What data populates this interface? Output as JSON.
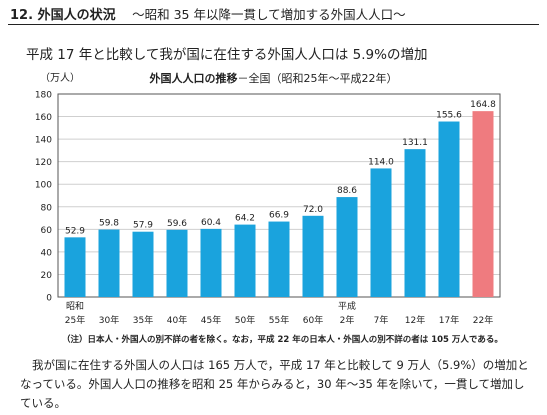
{
  "section": {
    "number": "12.",
    "title": "外国人の状況",
    "subtitle": "～昭和 35 年以降一貫して増加する外国人人口～"
  },
  "headline": "平成 17 年と比較して我が国に在住する外国人人口は 5.9%の増加",
  "chart_data": {
    "type": "bar",
    "title_bold": "外国人人口の推移",
    "title_rest": "－全国（昭和25年～平成22年）",
    "unit": "（万人）",
    "ylim": [
      0,
      180
    ],
    "yticks": [
      0,
      20,
      40,
      60,
      80,
      100,
      120,
      140,
      160,
      180
    ],
    "grid": true,
    "categories": [
      "昭和 25年",
      "30年",
      "35年",
      "40年",
      "45年",
      "50年",
      "55年",
      "60年",
      "平成 2年",
      "7年",
      "12年",
      "17年",
      "22年"
    ],
    "category_lines": [
      [
        "昭和",
        "25年"
      ],
      [
        "",
        "30年"
      ],
      [
        "",
        "35年"
      ],
      [
        "",
        "40年"
      ],
      [
        "",
        "45年"
      ],
      [
        "",
        "50年"
      ],
      [
        "",
        "55年"
      ],
      [
        "",
        "60年"
      ],
      [
        "平成",
        "2年"
      ],
      [
        "",
        "7年"
      ],
      [
        "",
        "12年"
      ],
      [
        "",
        "17年"
      ],
      [
        "",
        "22年"
      ]
    ],
    "values": [
      52.9,
      59.8,
      57.9,
      59.6,
      60.4,
      64.2,
      66.9,
      72.0,
      88.6,
      114.0,
      131.1,
      155.6,
      164.8
    ],
    "value_labels": [
      "52.9",
      "59.8",
      "57.9",
      "59.6",
      "60.4",
      "64.2",
      "66.9",
      "72.0",
      "88.6",
      "114.0",
      "131.1",
      "155.6",
      "164.8"
    ],
    "colors": {
      "bar": "#1aa3dd",
      "highlight": "#ef7b7f",
      "grid": "#cfcfcf"
    },
    "highlight_index": 12
  },
  "note": "（注）日本人・外国人の別不詳の者を除く。なお，平成 22 年の日本人・外国人の別不詳の者は 105 万人である。",
  "body_text": "我が国に在住する外国人の人口は 165 万人で，平成 17 年と比較して 9 万人（5.9%）の増加となっている。外国人人口の推移を昭和 25 年からみると，30 年～35 年を除いて，一貫して増加している。"
}
